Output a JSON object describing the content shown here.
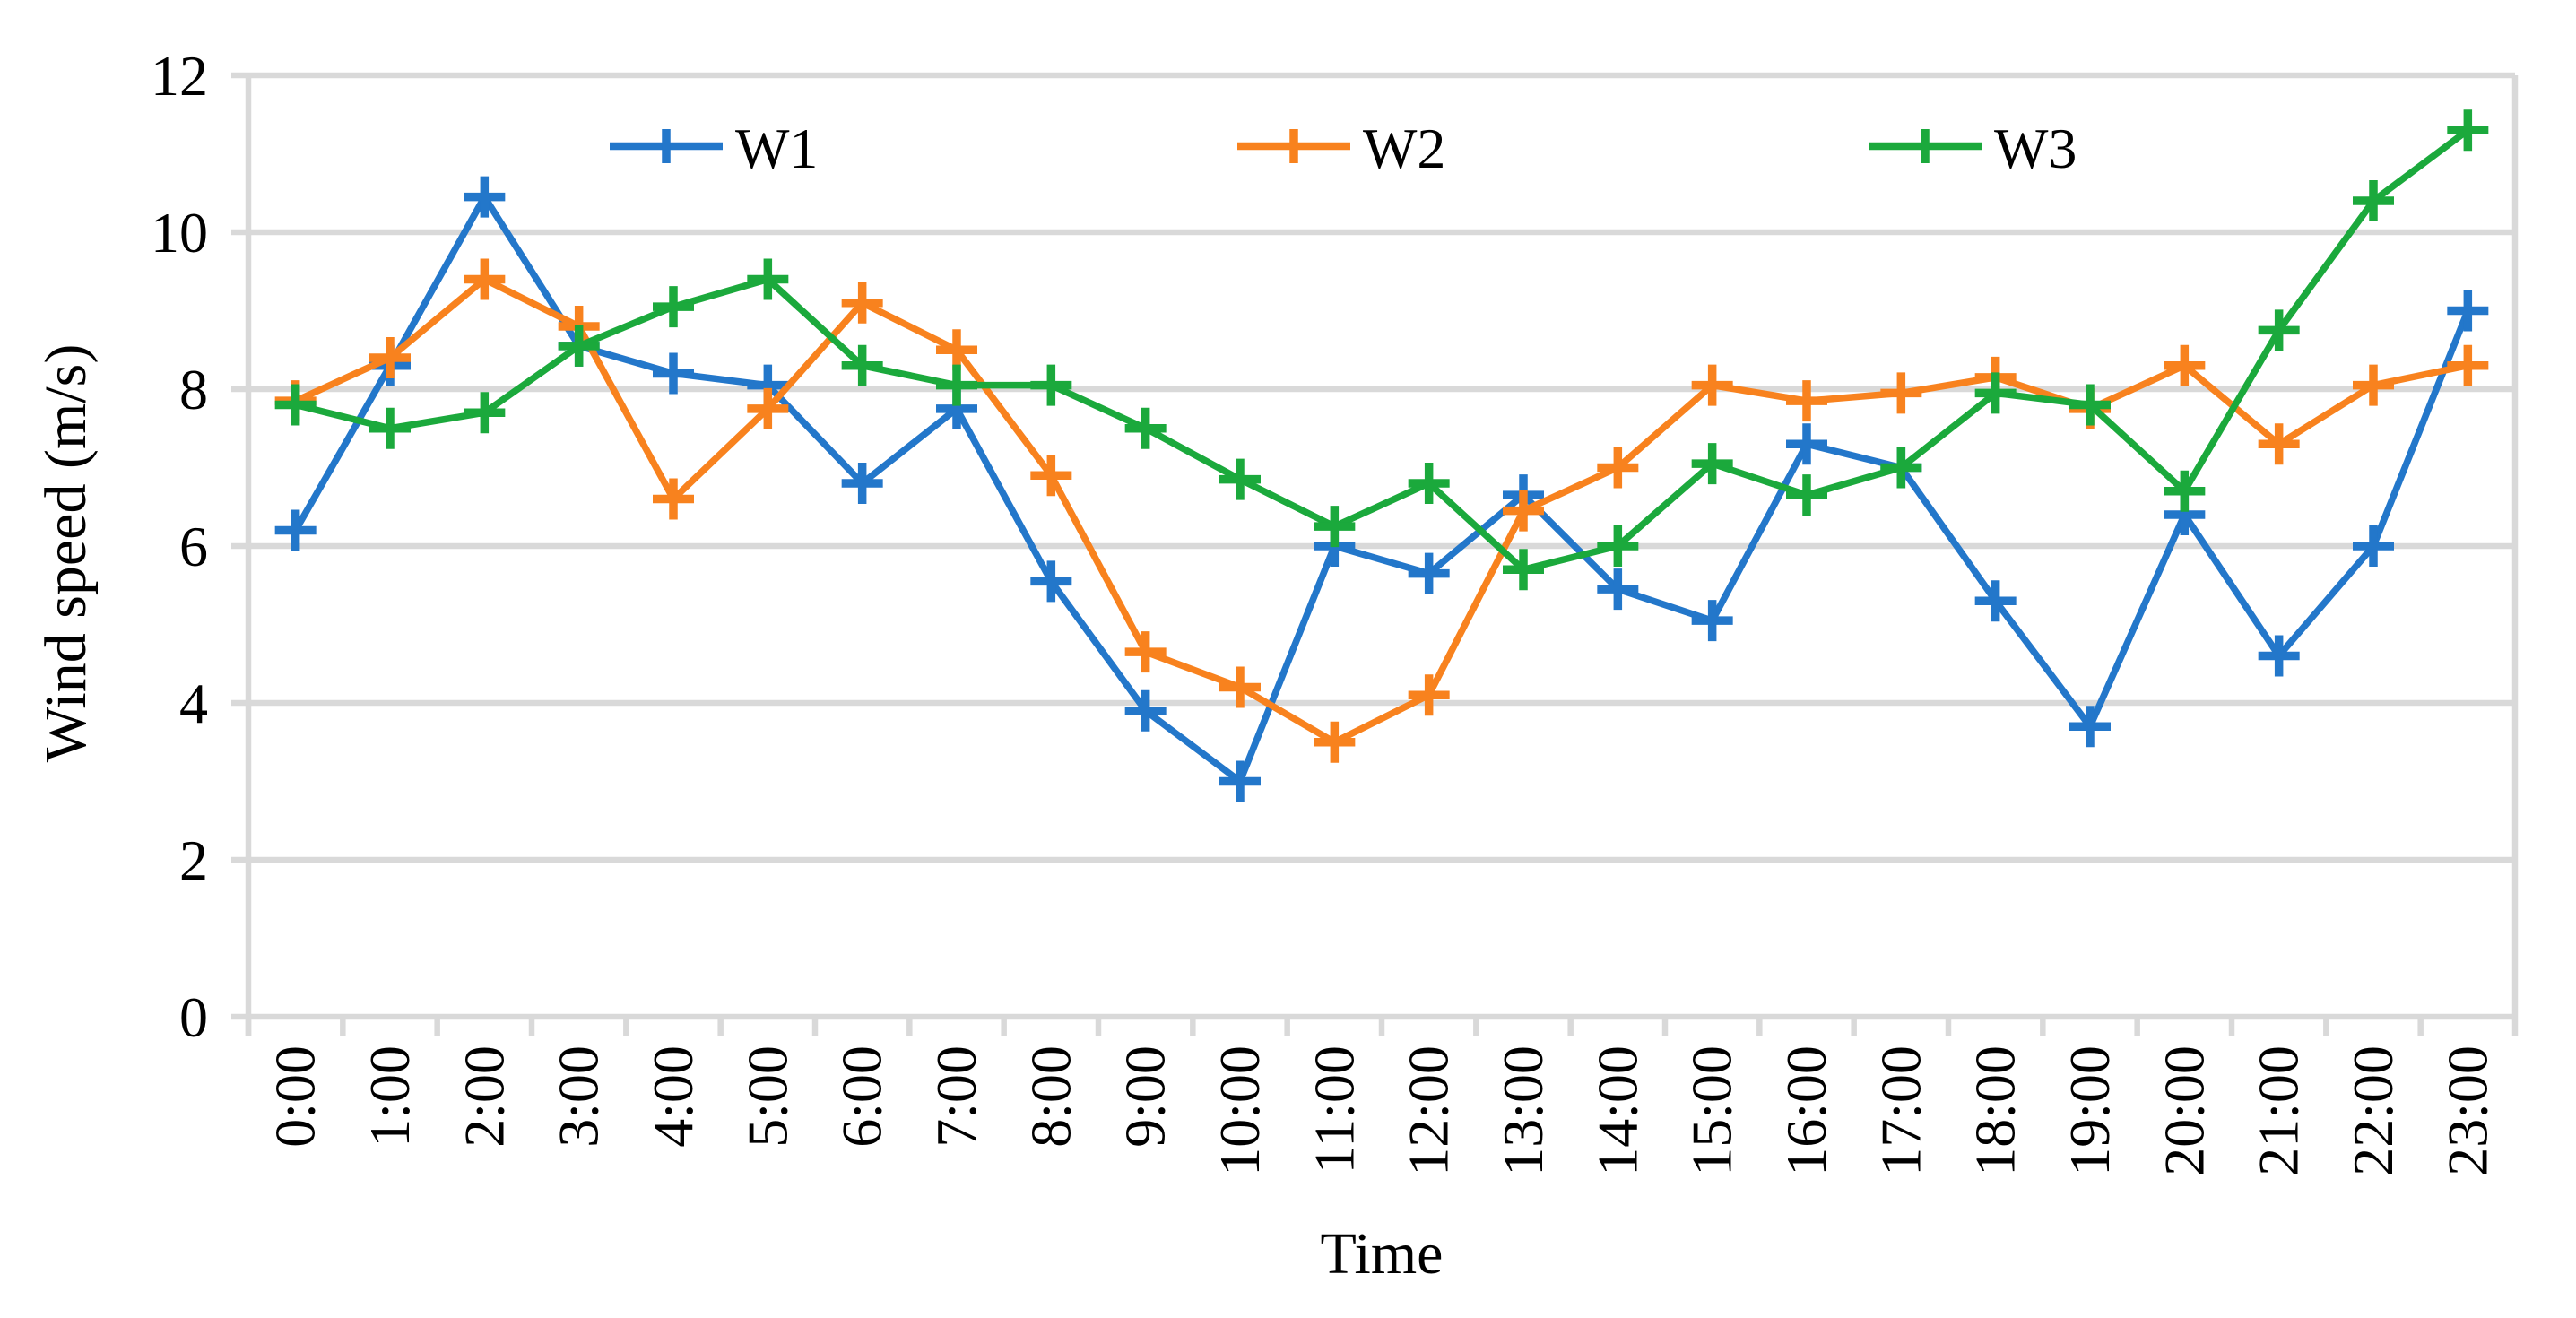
{
  "chart_data": {
    "type": "line",
    "title": "",
    "xlabel": "Time",
    "ylabel": "Wind speed (m/s)",
    "ylim": [
      0,
      12
    ],
    "ytick_step": 2,
    "yticks": [
      "0",
      "2",
      "4",
      "6",
      "8",
      "10",
      "12"
    ],
    "grid": "horizontal",
    "legend_position": "top-inside",
    "marker": "plus",
    "categories": [
      "0:00",
      "1:00",
      "2:00",
      "3:00",
      "4:00",
      "5:00",
      "6:00",
      "7:00",
      "8:00",
      "9:00",
      "10:00",
      "11:00",
      "12:00",
      "13:00",
      "14:00",
      "15:00",
      "16:00",
      "17:00",
      "18:00",
      "19:00",
      "20:00",
      "21:00",
      "22:00",
      "23:00"
    ],
    "series": [
      {
        "name": "W1",
        "color": "#2377CA",
        "values": [
          6.2,
          8.3,
          10.45,
          8.55,
          8.2,
          8.05,
          6.8,
          7.75,
          5.55,
          3.9,
          3.0,
          6.0,
          5.65,
          6.65,
          5.45,
          5.05,
          7.3,
          7.0,
          5.3,
          3.7,
          6.4,
          4.6,
          6.0,
          9.0
        ]
      },
      {
        "name": "W2",
        "color": "#F8821E",
        "values": [
          7.85,
          8.4,
          9.4,
          8.8,
          6.6,
          7.75,
          9.1,
          8.5,
          6.9,
          4.65,
          4.2,
          3.5,
          4.1,
          6.45,
          7.0,
          8.05,
          7.85,
          7.95,
          8.15,
          7.75,
          8.3,
          7.3,
          8.05,
          8.3
        ]
      },
      {
        "name": "W3",
        "color": "#1BA93C",
        "values": [
          7.8,
          7.5,
          7.7,
          8.55,
          9.05,
          9.4,
          8.3,
          8.05,
          8.05,
          7.5,
          6.85,
          6.25,
          6.8,
          5.7,
          6.0,
          7.05,
          6.65,
          7.0,
          7.95,
          7.8,
          6.7,
          8.75,
          10.4,
          11.3
        ]
      }
    ],
    "colors": {
      "gridline": "#D9D9D9",
      "axis": "#D9D9D9",
      "text": "#000000",
      "background": "#FFFFFF"
    }
  }
}
